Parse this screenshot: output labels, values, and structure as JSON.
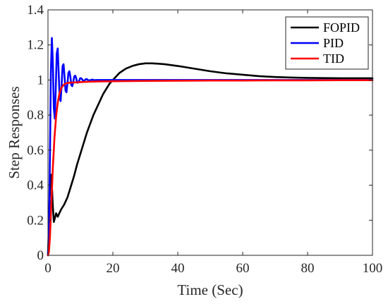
{
  "chart_data": {
    "type": "line",
    "xlabel": "Time (Sec)",
    "ylabel": "Step Responses",
    "xlim": [
      0,
      100
    ],
    "ylim": [
      0,
      1.4
    ],
    "x_ticks": [
      0,
      20,
      40,
      60,
      80,
      100
    ],
    "x_tick_labels": [
      "0",
      "20",
      "40",
      "60",
      "80",
      "100"
    ],
    "y_ticks": [
      0,
      0.2,
      0.4,
      0.6,
      0.8,
      1,
      1.2,
      1.4
    ],
    "y_tick_labels": [
      "0",
      "0.2",
      "0.4",
      "0.6",
      "0.8",
      "1",
      "1.2",
      "1.4"
    ],
    "grid": false,
    "legend_position": "top-right",
    "series": [
      {
        "name": "FOPID",
        "color": "#000000",
        "x": [
          0,
          0.2,
          0.5,
          0.8,
          1.0,
          1.2,
          1.5,
          1.8,
          2.1,
          2.5,
          3.0,
          3.5,
          4.0,
          5,
          6,
          7,
          8,
          9,
          10,
          11,
          12,
          13,
          14,
          15,
          16,
          17,
          18,
          19,
          20,
          22,
          24,
          26,
          28,
          30,
          32,
          34,
          36,
          38,
          40,
          45,
          50,
          55,
          60,
          65,
          70,
          75,
          80,
          85,
          90,
          95,
          100
        ],
        "y": [
          0,
          0.12,
          0.32,
          0.44,
          0.46,
          0.4,
          0.28,
          0.19,
          0.21,
          0.24,
          0.22,
          0.24,
          0.26,
          0.29,
          0.33,
          0.39,
          0.45,
          0.52,
          0.58,
          0.64,
          0.7,
          0.75,
          0.8,
          0.84,
          0.88,
          0.92,
          0.95,
          0.98,
          1.0,
          1.04,
          1.065,
          1.08,
          1.09,
          1.095,
          1.095,
          1.093,
          1.09,
          1.085,
          1.08,
          1.065,
          1.05,
          1.038,
          1.03,
          1.022,
          1.017,
          1.014,
          1.012,
          1.011,
          1.01,
          1.01,
          1.01
        ]
      },
      {
        "name": "PID",
        "color": "#0000ff",
        "x": [
          0,
          0.3,
          0.6,
          0.9,
          1.2,
          1.5,
          1.8,
          2.1,
          2.4,
          2.7,
          3.0,
          3.3,
          3.6,
          3.9,
          4.2,
          4.5,
          4.8,
          5.1,
          5.4,
          5.7,
          6.0,
          6.3,
          6.6,
          6.9,
          7.2,
          7.5,
          7.8,
          8.1,
          8.4,
          8.7,
          9.0,
          9.3,
          9.6,
          9.9,
          10.2,
          10.5,
          10.8,
          11.1,
          11.4,
          11.7,
          12.0,
          12.3,
          12.6,
          12.9,
          13.2,
          13.5,
          13.8,
          14.1,
          14.4,
          15,
          17,
          20,
          30,
          40,
          60,
          80,
          100
        ],
        "y": [
          0,
          0.1,
          0.55,
          1.05,
          1.24,
          1.1,
          0.84,
          0.78,
          0.95,
          1.15,
          1.18,
          1.04,
          0.9,
          0.88,
          0.97,
          1.08,
          1.09,
          1.02,
          0.94,
          0.93,
          0.98,
          1.04,
          1.05,
          1.02,
          0.97,
          0.965,
          0.99,
          1.02,
          1.025,
          1.01,
          0.985,
          0.985,
          0.995,
          1.01,
          1.01,
          1.005,
          0.995,
          0.995,
          1.0,
          1.005,
          1.005,
          1.0,
          0.998,
          0.998,
          1.0,
          1.002,
          1.002,
          1.0,
          0.999,
          1.0,
          1.0,
          1.0,
          1.0,
          1.0,
          1.0,
          1.0,
          1.0
        ]
      },
      {
        "name": "TID",
        "color": "#ff0000",
        "x": [
          0,
          0.3,
          0.6,
          1.0,
          1.5,
          2.0,
          2.5,
          3.0,
          3.5,
          4.0,
          4.5,
          5.0,
          5.5,
          6.0,
          7,
          8,
          9,
          10,
          12,
          14,
          16,
          20,
          25,
          30,
          40,
          50,
          60,
          70,
          80,
          90,
          100
        ],
        "y": [
          0,
          0.02,
          0.1,
          0.28,
          0.5,
          0.67,
          0.79,
          0.87,
          0.92,
          0.95,
          0.965,
          0.975,
          0.98,
          0.983,
          0.985,
          0.986,
          0.987,
          0.988,
          0.99,
          0.991,
          0.992,
          0.993,
          0.994,
          0.995,
          0.996,
          0.997,
          0.997,
          0.998,
          0.998,
          0.999,
          0.999
        ]
      }
    ]
  }
}
